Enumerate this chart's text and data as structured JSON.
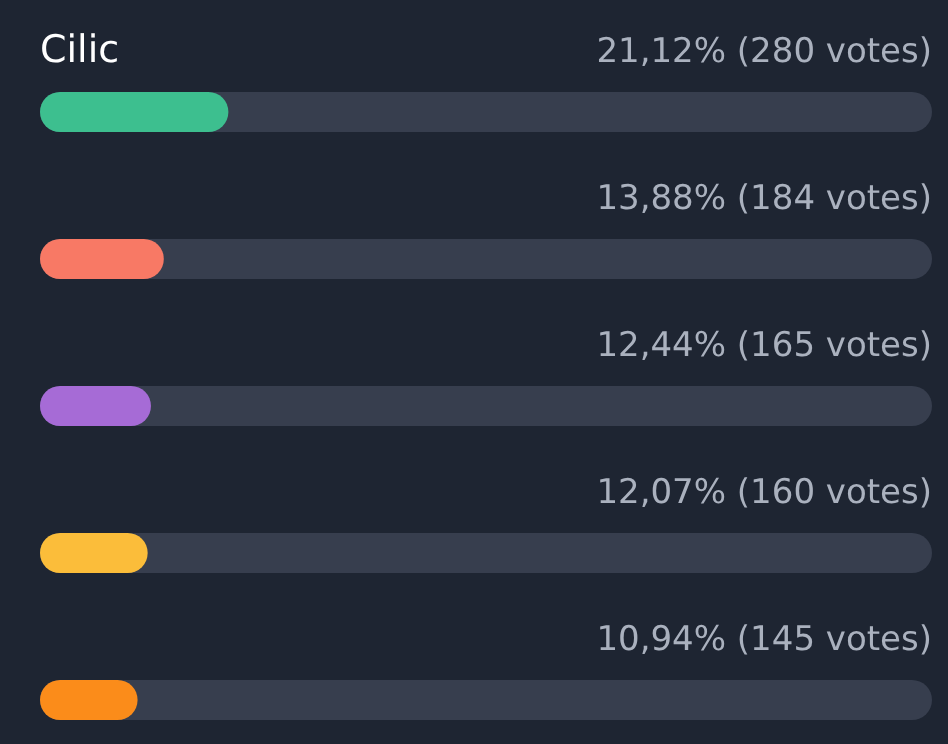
{
  "chart_data": {
    "type": "bar",
    "orientation": "horizontal",
    "categories": [
      "Cilic",
      null,
      null,
      null,
      null
    ],
    "values": [
      21.12,
      13.88,
      12.44,
      12.07,
      10.94
    ],
    "colors": [
      "#3dbf8f",
      "#f87965",
      "#a66bd6",
      "#fbbd3a",
      "#fb8c1a"
    ],
    "value_labels": [
      "21,12% (280 votes)",
      "13,88% (184 votes)",
      "12,44% (165 votes)",
      "12,07% (160 votes)",
      "10,94% (145 votes)"
    ],
    "xlim": [
      0,
      100
    ]
  }
}
